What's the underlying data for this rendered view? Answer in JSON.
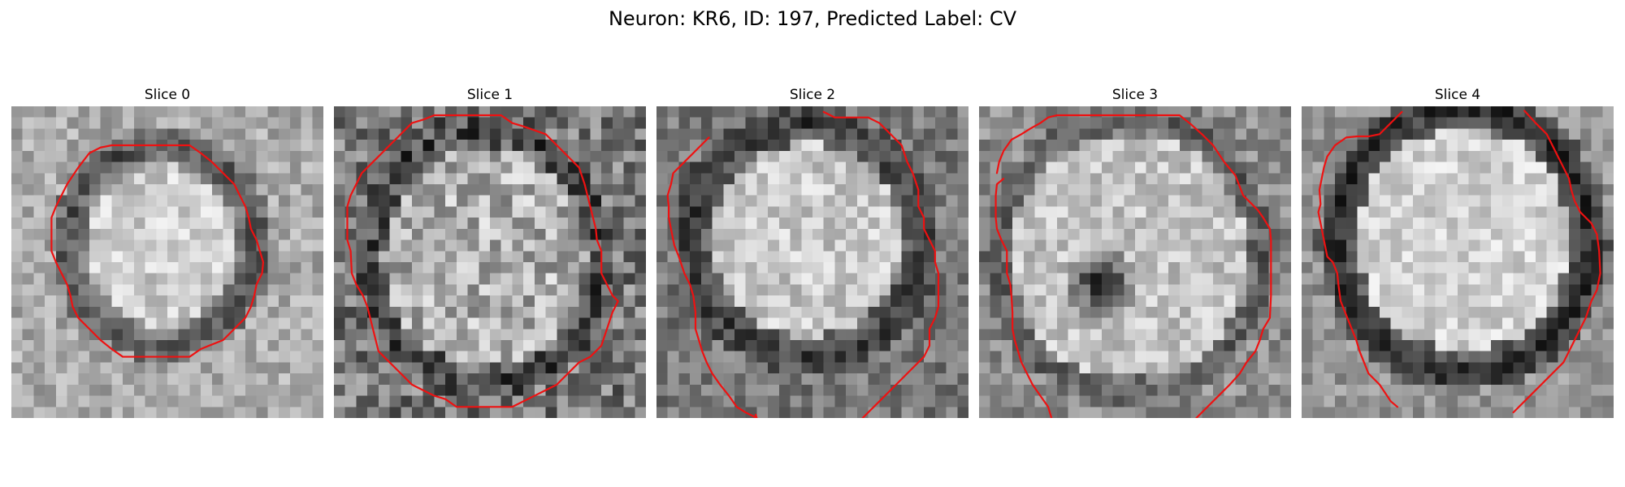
{
  "figure": {
    "suptitle": "Neuron: KR6, ID: 197, Predicted Label: CV"
  },
  "panels": [
    {
      "title": "Slice 0"
    },
    {
      "title": "Slice 1"
    },
    {
      "title": "Slice 2"
    },
    {
      "title": "Slice 3"
    },
    {
      "title": "Slice 4"
    }
  ],
  "style": {
    "contour_color": "#ee1111",
    "colormap": "gray"
  }
}
